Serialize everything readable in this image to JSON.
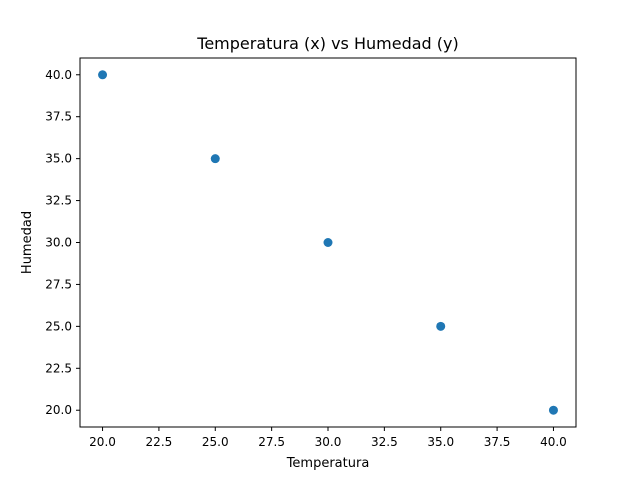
{
  "chart_data": {
    "type": "scatter",
    "title": "Temperatura (x) vs Humedad (y)",
    "xlabel": "Temperatura",
    "ylabel": "Humedad",
    "xlim": [
      19.0,
      41.0
    ],
    "ylim": [
      19.0,
      41.0
    ],
    "x_ticks": [
      "20.0",
      "22.5",
      "25.0",
      "27.5",
      "30.0",
      "32.5",
      "35.0",
      "37.5",
      "40.0"
    ],
    "y_ticks": [
      "20.0",
      "22.5",
      "25.0",
      "27.5",
      "30.0",
      "32.5",
      "35.0",
      "37.5",
      "40.0"
    ],
    "grid": false,
    "series": [
      {
        "color": "#1f77b4",
        "x": [
          20,
          25,
          30,
          35,
          40
        ],
        "y": [
          40,
          35,
          30,
          25,
          20
        ]
      }
    ]
  }
}
